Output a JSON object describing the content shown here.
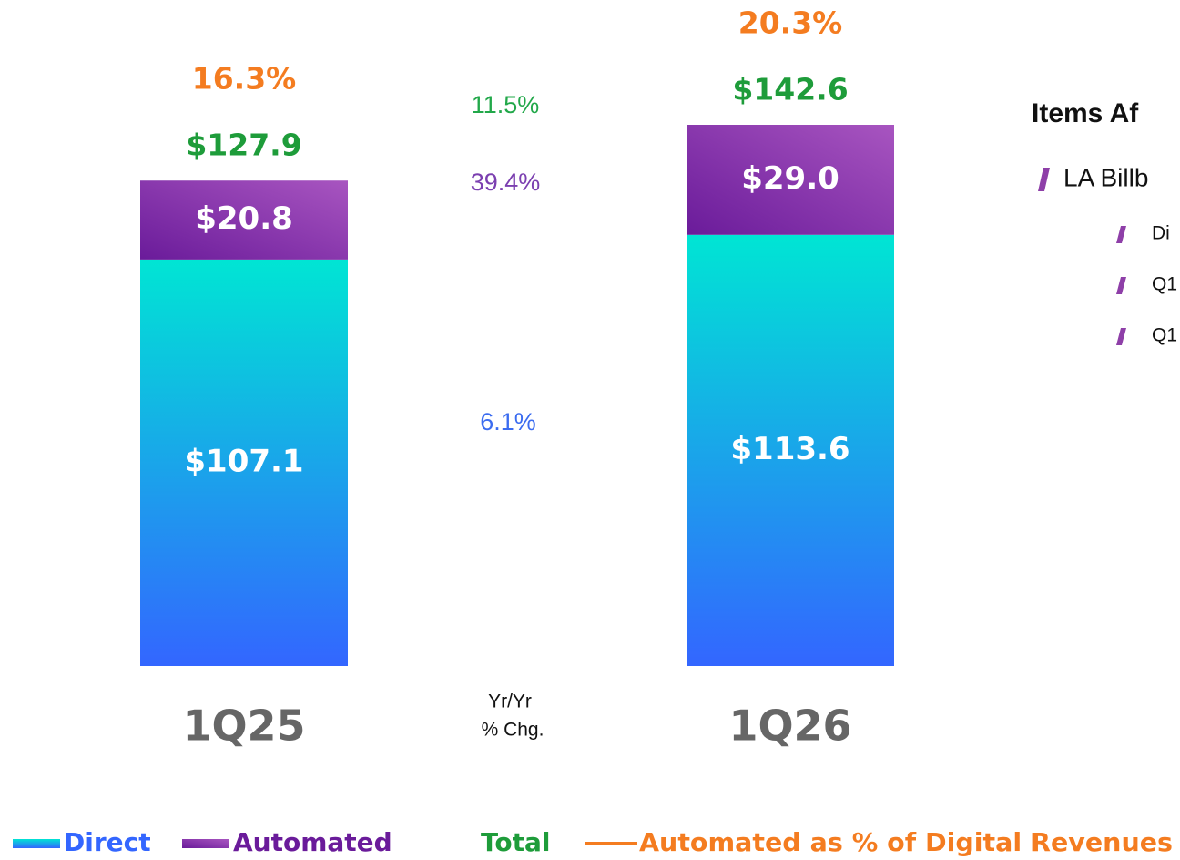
{
  "chart_data": {
    "type": "bar",
    "stacked": true,
    "categories": [
      "1Q25",
      "1Q26"
    ],
    "series": [
      {
        "name": "Direct",
        "color": "#3366ff",
        "gradient": [
          "#00e5d4",
          "#3366ff"
        ],
        "label_color": "#ffffff",
        "values": [
          107.1,
          113.6
        ],
        "value_labels": [
          "$107.1",
          "$113.6"
        ],
        "yoy": 6.1,
        "yoy_label": "6.1%",
        "yoy_color": "#3b6cf0"
      },
      {
        "name": "Automated",
        "color": "#6a1b9a",
        "gradient": [
          "#6a1b9a",
          "#a855c0"
        ],
        "label_color": "#ffffff",
        "values": [
          20.8,
          29.0
        ],
        "value_labels": [
          "$20.8",
          "$29.0"
        ],
        "yoy": 39.4,
        "yoy_label": "39.4%",
        "yoy_color": "#7b3fb0"
      }
    ],
    "totals": {
      "name": "Total",
      "color": "#1e9c3a",
      "values": [
        127.9,
        142.6
      ],
      "value_labels": [
        "$127.9",
        "$142.6"
      ],
      "yoy": 11.5,
      "yoy_label": "11.5%",
      "yoy_color": "#22a84a"
    },
    "automated_share": {
      "name": "Automated as % of Digital Revenues",
      "color": "#f47c20",
      "values": [
        16.3,
        20.3
      ],
      "value_labels": [
        "16.3%",
        "20.3%"
      ]
    },
    "yoy_heading": [
      "Yr/Yr",
      "% Chg."
    ]
  },
  "side_panel": {
    "heading": "Items Af",
    "bullet": "LA Billb",
    "sub_bullets": [
      "Di",
      "Q1",
      "Q1"
    ]
  }
}
